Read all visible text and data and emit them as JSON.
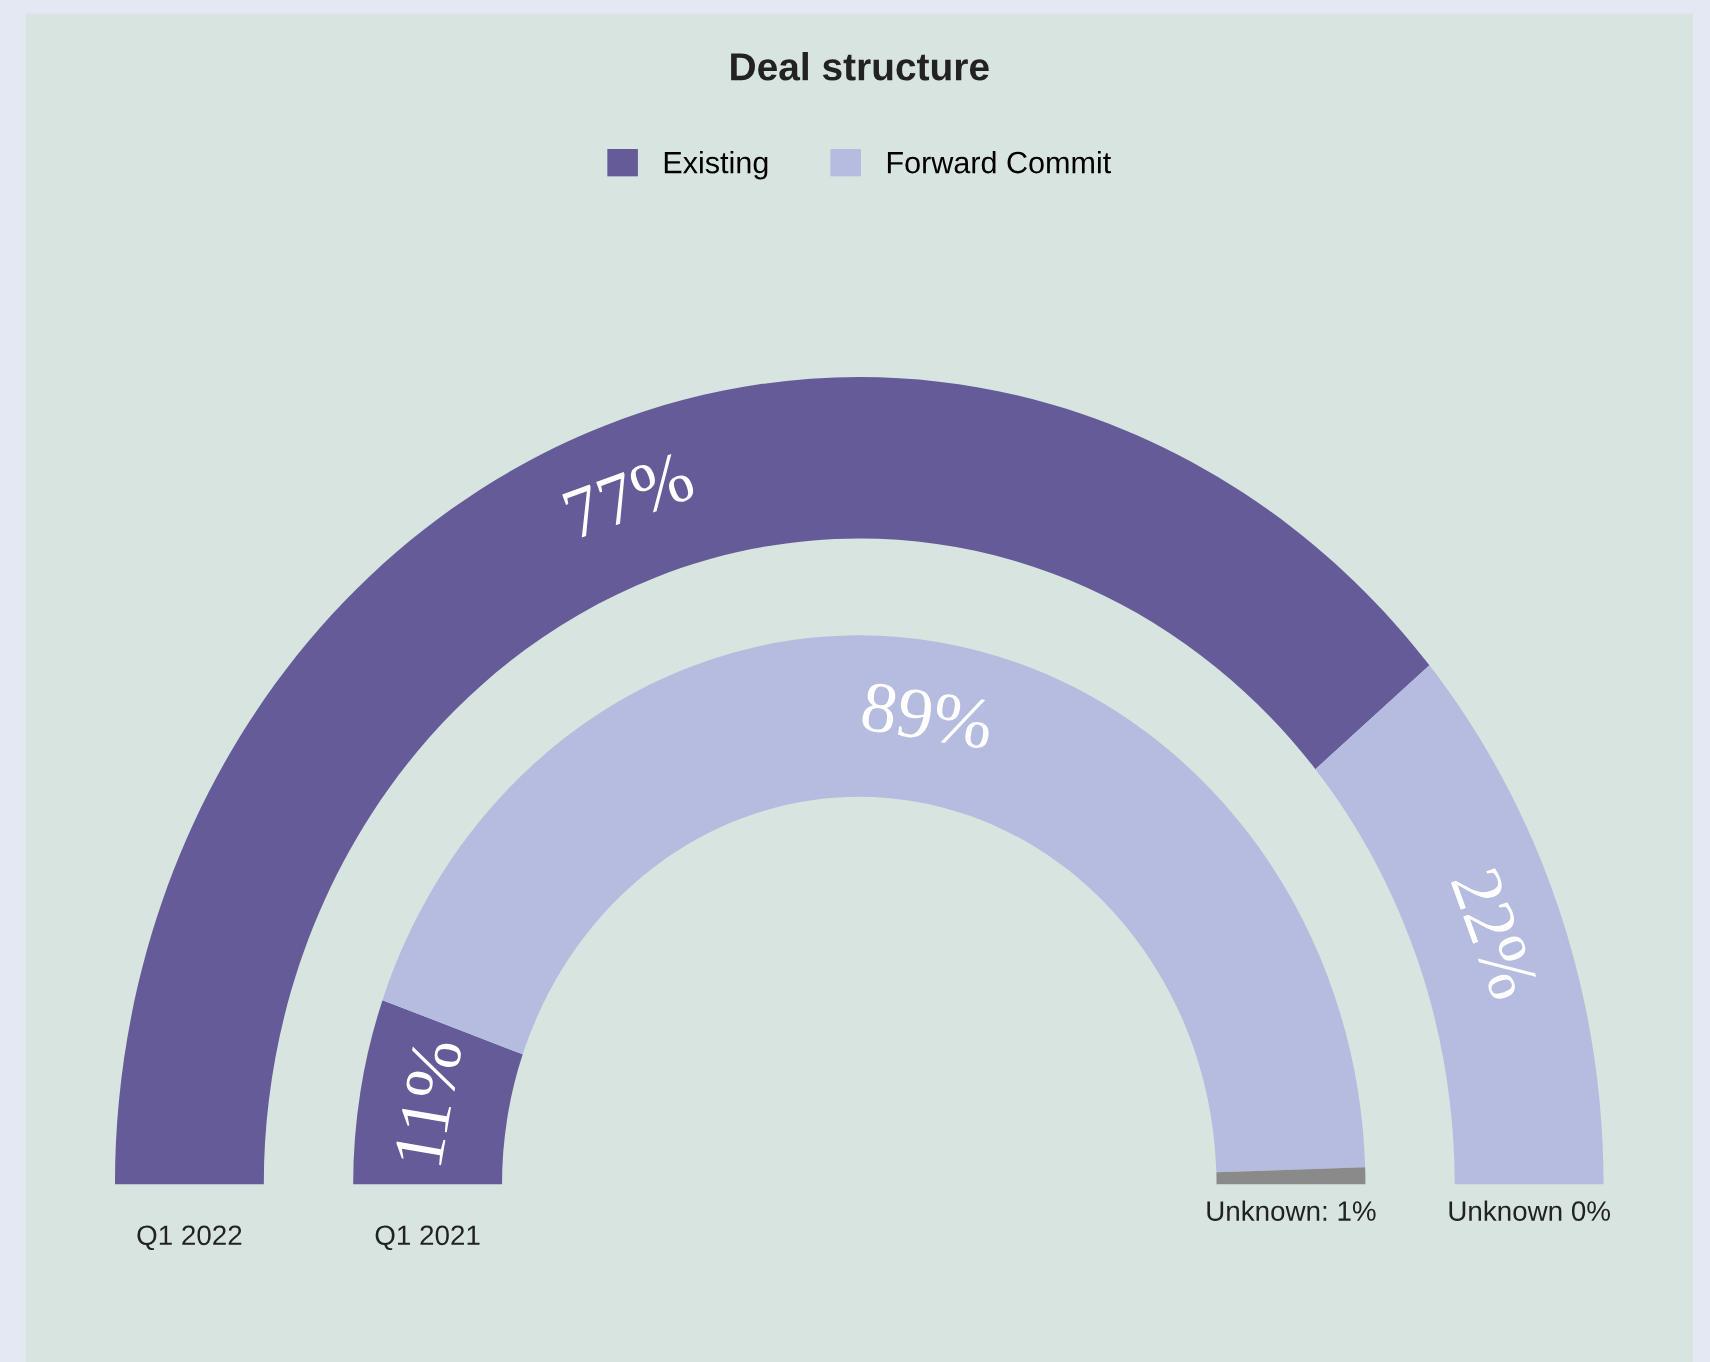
{
  "chart_data": {
    "type": "donut",
    "title": "Deal structure",
    "categories": [
      "Existing",
      "Forward Commit",
      null
    ],
    "colors": [
      "#655b98",
      "#b6bcdf",
      "#8a8a8a"
    ],
    "series": [
      {
        "name": "Q1 2022",
        "values": [
          77,
          22,
          0
        ],
        "value_labels": [
          "77%",
          "22%",
          "Unknown 0%"
        ]
      },
      {
        "name": "Q1 2021",
        "values": [
          11,
          89,
          1
        ],
        "value_labels": [
          "11%",
          "89%",
          "Unknown: 1%"
        ]
      }
    ],
    "legend": "top"
  }
}
